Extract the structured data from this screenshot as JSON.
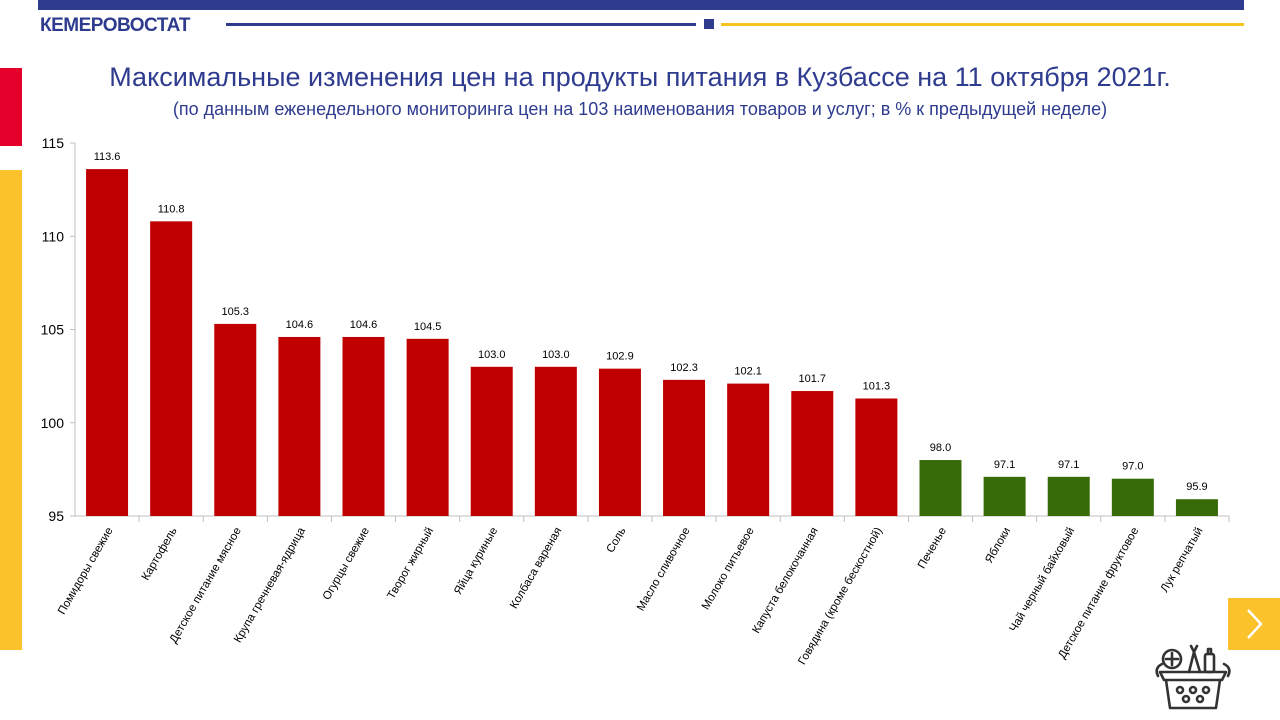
{
  "header": {
    "brand": "КЕМЕРОВОСТАТ"
  },
  "title": "Максимальные изменения цен на продукты питания в Кузбассе на 11 октября 2021г.",
  "subtitle": "(по данным еженедельного мониторинга цен на 103 наименования товаров и услуг; в % к предыдущей неделе)",
  "colors": {
    "increase": "#c00000",
    "decrease": "#376b07",
    "brand_blue": "#2e3b8f",
    "accent_yellow": "#fcc22c",
    "accent_red": "#e4002b"
  },
  "icons": {
    "next": "chevron-right-icon",
    "basket": "food-basket-icon"
  },
  "chart_data": {
    "type": "bar",
    "title": "",
    "xlabel": "",
    "ylabel": "",
    "ylim": [
      95,
      115
    ],
    "yticks": [
      95,
      100,
      105,
      110,
      115
    ],
    "grid": false,
    "categories": [
      "Помидоры свежие",
      "Картофель",
      "Детское питание мясное",
      "Крупа гречневая-ядрица",
      "Огурцы свежие",
      "Творог жирный",
      "Яйца куриные",
      "Колбаса вареная",
      "Соль",
      "Масло сливочное",
      "Молоко питьевое",
      "Капуста белокочанная",
      "Говядина (кроме бескостной)",
      "Печенье",
      "Яблоки",
      "Чай черный байховый",
      "Детское питание фруктовое",
      "Лук репчатый"
    ],
    "values": [
      113.6,
      110.8,
      105.3,
      104.6,
      104.6,
      104.5,
      103.0,
      103.0,
      102.9,
      102.3,
      102.1,
      101.7,
      101.3,
      98.0,
      97.1,
      97.1,
      97.0,
      95.9
    ],
    "value_labels": [
      "113.6",
      "110.8",
      "105.3",
      "104.6",
      "104.6",
      "104.5",
      "103.0",
      "103.0",
      "102.9",
      "102.3",
      "102.1",
      "101.7",
      "101.3",
      "98.0",
      "97.1",
      "97.1",
      "97.0",
      "95.9"
    ]
  }
}
